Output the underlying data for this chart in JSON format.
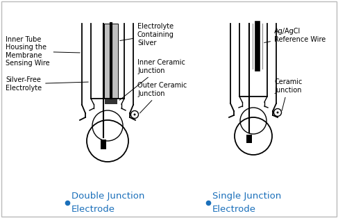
{
  "bg_color": "#ffffff",
  "border_color": "#bbbbbb",
  "black": "#000000",
  "dark": "#1a1a1a",
  "gray_fill": "#b8b8b8",
  "blue_label": "#1a6fba",
  "label_fs": 7.0,
  "label_title_fs": 9.5,
  "lw_outer": 1.3,
  "lw_inner": 1.0,
  "annotations_dj": {
    "inner_tube": [
      "Inner Tube",
      "Housing the",
      "Membrane",
      "Sensing Wire"
    ],
    "silver_free": [
      "Silver-Free",
      "Electrolyte"
    ],
    "elec_silver": [
      "Electrolyte",
      "Containing",
      "Silver"
    ],
    "inner_cer": [
      "Inner Ceramic",
      "Junction"
    ],
    "outer_cer": [
      "Outer Ceramic",
      "Junction"
    ],
    "label_line1": "Double Junction",
    "label_line2": "Electrode"
  },
  "annotations_sj": {
    "ag_agcl": [
      "Ag/AgCl",
      "Reference Wire"
    ],
    "ceramic": [
      "Ceramic",
      "Junction"
    ],
    "label_line1": "Single Junction",
    "label_line2": "Electrode"
  }
}
